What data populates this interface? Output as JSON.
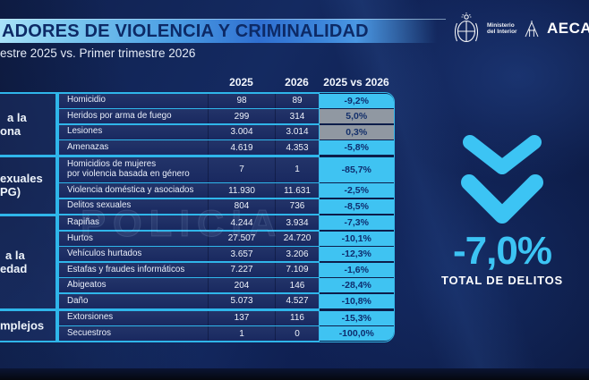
{
  "chart_data": {
    "type": "table",
    "title": "ADORES DE VIOLENCIA Y CRIMINALIDAD",
    "subtitle": "estre 2025 vs. Primer trimestre 2026",
    "columns": [
      "2025",
      "2026",
      "2025 vs 2026"
    ],
    "groups": [
      {
        "category_lines": [
          "a la",
          "ona"
        ],
        "rows": [
          {
            "label": "Homicidio",
            "y2025": "98",
            "y2026": "89",
            "delta": "-9,2%",
            "positive": false
          },
          {
            "label": "Heridos por arma de fuego",
            "y2025": "299",
            "y2026": "314",
            "delta": "5,0%",
            "positive": true
          },
          {
            "label": "Lesiones",
            "y2025": "3.004",
            "y2026": "3.014",
            "delta": "0,3%",
            "positive": true
          },
          {
            "label": "Amenazas",
            "y2025": "4.619",
            "y2026": "4.353",
            "delta": "-5,8%",
            "positive": false
          }
        ]
      },
      {
        "category_lines": [
          "exuales",
          "PG)"
        ],
        "rows": [
          {
            "label": "Homicidios de mujeres",
            "label2": "por violencia basada en género",
            "y2025": "7",
            "y2026": "1",
            "delta": "-85,7%",
            "positive": false
          },
          {
            "label": "Violencia doméstica y asociados",
            "y2025": "11.930",
            "y2026": "11.631",
            "delta": "-2,5%",
            "positive": false
          },
          {
            "label": "Delitos sexuales",
            "y2025": "804",
            "y2026": "736",
            "delta": "-8,5%",
            "positive": false
          }
        ]
      },
      {
        "category_lines": [
          "a la",
          "edad"
        ],
        "rows": [
          {
            "label": "Rapiñas",
            "y2025": "4.244",
            "y2026": "3.934",
            "delta": "-7,3%",
            "positive": false
          },
          {
            "label": "Hurtos",
            "y2025": "27.507",
            "y2026": "24.720",
            "delta": "-10,1%",
            "positive": false
          },
          {
            "label": "Vehículos hurtados",
            "y2025": "3.657",
            "y2026": "3.206",
            "delta": "-12,3%",
            "positive": false
          },
          {
            "label": "Estafas y fraudes informáticos",
            "y2025": "7.227",
            "y2026": "7.109",
            "delta": "-1,6%",
            "positive": false
          },
          {
            "label": "Abigeatos",
            "y2025": "204",
            "y2026": "146",
            "delta": "-28,4%",
            "positive": false
          },
          {
            "label": "Daño",
            "y2025": "5.073",
            "y2026": "4.527",
            "delta": "-10,8%",
            "positive": false
          }
        ]
      },
      {
        "category_lines": [
          "mplejos"
        ],
        "rows": [
          {
            "label": "Extorsiones",
            "y2025": "137",
            "y2026": "116",
            "delta": "-15,3%",
            "positive": false
          },
          {
            "label": "Secuestros",
            "y2025": "1",
            "y2026": "0",
            "delta": "-100,0%",
            "positive": false
          }
        ]
      }
    ],
    "summary": {
      "value": "-7,0%",
      "caption": "TOTAL DE DELITOS",
      "trend_icon": "double-chevron-down"
    }
  },
  "branding": {
    "ministry_line1": "Ministerio",
    "ministry_line2": "del Interior",
    "aeca": "AECA"
  },
  "background": {
    "watermark": "POLICIA"
  },
  "colors": {
    "accent_cyan": "#3fc3f2",
    "positive_gray": "#9098a2",
    "row_navy": "#1d2c62",
    "delta_text_navy": "#0e2d6e",
    "banner_light_blue": "#a9e2f8",
    "banner_blue": "#2f6fd1",
    "page_navy": "#10214f"
  }
}
